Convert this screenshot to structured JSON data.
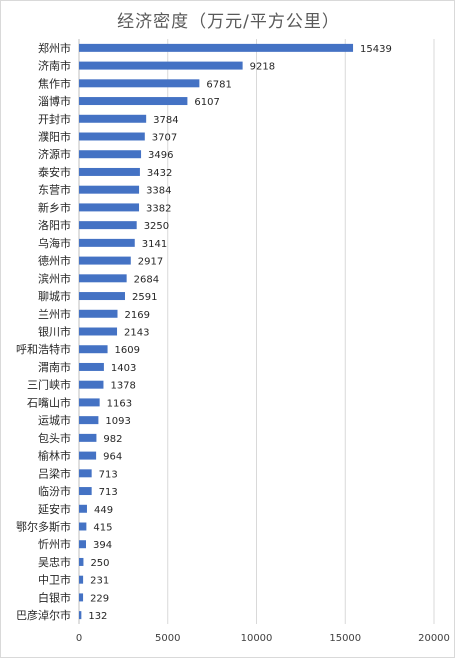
{
  "chart_data": {
    "type": "bar",
    "orientation": "horizontal",
    "title": "经济密度（万元/平方公里）",
    "xlabel": "",
    "ylabel": "",
    "xlim": [
      0,
      20000
    ],
    "x_ticks": [
      0,
      5000,
      10000,
      15000,
      20000
    ],
    "grid": true,
    "legend": "none",
    "bar_color": "#4472c4",
    "categories": [
      "郑州市",
      "济南市",
      "焦作市",
      "淄博市",
      "开封市",
      "濮阳市",
      "济源市",
      "泰安市",
      "东营市",
      "新乡市",
      "洛阳市",
      "乌海市",
      "德州市",
      "滨州市",
      "聊城市",
      "兰州市",
      "银川市",
      "呼和浩特市",
      "渭南市",
      "三门峡市",
      "石嘴山市",
      "运城市",
      "包头市",
      "榆林市",
      "吕梁市",
      "临汾市",
      "延安市",
      "鄂尔多斯市",
      "忻州市",
      "吴忠市",
      "中卫市",
      "白银市",
      "巴彦淖尔市"
    ],
    "values": [
      15439,
      9218,
      6781,
      6107,
      3784,
      3707,
      3496,
      3432,
      3384,
      3382,
      3250,
      3141,
      2917,
      2684,
      2591,
      2169,
      2143,
      1609,
      1403,
      1378,
      1163,
      1093,
      982,
      964,
      713,
      713,
      449,
      415,
      394,
      250,
      231,
      229,
      132
    ]
  }
}
